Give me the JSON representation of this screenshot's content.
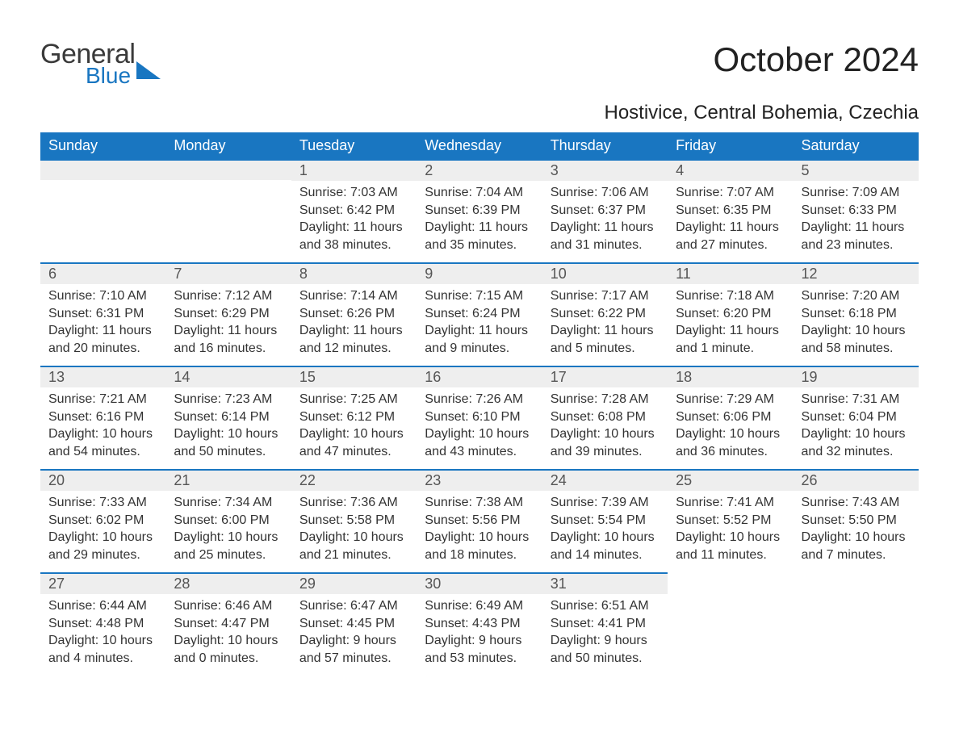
{
  "brand": {
    "line1": "General",
    "line2": "Blue",
    "accent": "#1976c1",
    "text_color": "#3a3a3a"
  },
  "title": "October 2024",
  "location": "Hostivice, Central Bohemia, Czechia",
  "colors": {
    "header_bg": "#1976c1",
    "header_fg": "#ffffff",
    "daynum_bg": "#eeeeee",
    "daynum_fg": "#555555",
    "body_fg": "#333333",
    "rule": "#1976c1",
    "page_bg": "#ffffff"
  },
  "typography": {
    "title_fontsize_pt": 32,
    "location_fontsize_pt": 18,
    "header_fontsize_pt": 14,
    "daynum_fontsize_pt": 14,
    "body_fontsize_pt": 12,
    "family": "Arial"
  },
  "layout": {
    "columns": 7,
    "rows": 5,
    "first_weekday": "Sunday",
    "leading_blanks": 2,
    "trailing_blanks": 2
  },
  "weekdays": [
    "Sunday",
    "Monday",
    "Tuesday",
    "Wednesday",
    "Thursday",
    "Friday",
    "Saturday"
  ],
  "days": [
    {
      "n": 1,
      "sunrise": "7:03 AM",
      "sunset": "6:42 PM",
      "daylight": "11 hours and 38 minutes."
    },
    {
      "n": 2,
      "sunrise": "7:04 AM",
      "sunset": "6:39 PM",
      "daylight": "11 hours and 35 minutes."
    },
    {
      "n": 3,
      "sunrise": "7:06 AM",
      "sunset": "6:37 PM",
      "daylight": "11 hours and 31 minutes."
    },
    {
      "n": 4,
      "sunrise": "7:07 AM",
      "sunset": "6:35 PM",
      "daylight": "11 hours and 27 minutes."
    },
    {
      "n": 5,
      "sunrise": "7:09 AM",
      "sunset": "6:33 PM",
      "daylight": "11 hours and 23 minutes."
    },
    {
      "n": 6,
      "sunrise": "7:10 AM",
      "sunset": "6:31 PM",
      "daylight": "11 hours and 20 minutes."
    },
    {
      "n": 7,
      "sunrise": "7:12 AM",
      "sunset": "6:29 PM",
      "daylight": "11 hours and 16 minutes."
    },
    {
      "n": 8,
      "sunrise": "7:14 AM",
      "sunset": "6:26 PM",
      "daylight": "11 hours and 12 minutes."
    },
    {
      "n": 9,
      "sunrise": "7:15 AM",
      "sunset": "6:24 PM",
      "daylight": "11 hours and 9 minutes."
    },
    {
      "n": 10,
      "sunrise": "7:17 AM",
      "sunset": "6:22 PM",
      "daylight": "11 hours and 5 minutes."
    },
    {
      "n": 11,
      "sunrise": "7:18 AM",
      "sunset": "6:20 PM",
      "daylight": "11 hours and 1 minute."
    },
    {
      "n": 12,
      "sunrise": "7:20 AM",
      "sunset": "6:18 PM",
      "daylight": "10 hours and 58 minutes."
    },
    {
      "n": 13,
      "sunrise": "7:21 AM",
      "sunset": "6:16 PM",
      "daylight": "10 hours and 54 minutes."
    },
    {
      "n": 14,
      "sunrise": "7:23 AM",
      "sunset": "6:14 PM",
      "daylight": "10 hours and 50 minutes."
    },
    {
      "n": 15,
      "sunrise": "7:25 AM",
      "sunset": "6:12 PM",
      "daylight": "10 hours and 47 minutes."
    },
    {
      "n": 16,
      "sunrise": "7:26 AM",
      "sunset": "6:10 PM",
      "daylight": "10 hours and 43 minutes."
    },
    {
      "n": 17,
      "sunrise": "7:28 AM",
      "sunset": "6:08 PM",
      "daylight": "10 hours and 39 minutes."
    },
    {
      "n": 18,
      "sunrise": "7:29 AM",
      "sunset": "6:06 PM",
      "daylight": "10 hours and 36 minutes."
    },
    {
      "n": 19,
      "sunrise": "7:31 AM",
      "sunset": "6:04 PM",
      "daylight": "10 hours and 32 minutes."
    },
    {
      "n": 20,
      "sunrise": "7:33 AM",
      "sunset": "6:02 PM",
      "daylight": "10 hours and 29 minutes."
    },
    {
      "n": 21,
      "sunrise": "7:34 AM",
      "sunset": "6:00 PM",
      "daylight": "10 hours and 25 minutes."
    },
    {
      "n": 22,
      "sunrise": "7:36 AM",
      "sunset": "5:58 PM",
      "daylight": "10 hours and 21 minutes."
    },
    {
      "n": 23,
      "sunrise": "7:38 AM",
      "sunset": "5:56 PM",
      "daylight": "10 hours and 18 minutes."
    },
    {
      "n": 24,
      "sunrise": "7:39 AM",
      "sunset": "5:54 PM",
      "daylight": "10 hours and 14 minutes."
    },
    {
      "n": 25,
      "sunrise": "7:41 AM",
      "sunset": "5:52 PM",
      "daylight": "10 hours and 11 minutes."
    },
    {
      "n": 26,
      "sunrise": "7:43 AM",
      "sunset": "5:50 PM",
      "daylight": "10 hours and 7 minutes."
    },
    {
      "n": 27,
      "sunrise": "6:44 AM",
      "sunset": "4:48 PM",
      "daylight": "10 hours and 4 minutes."
    },
    {
      "n": 28,
      "sunrise": "6:46 AM",
      "sunset": "4:47 PM",
      "daylight": "10 hours and 0 minutes."
    },
    {
      "n": 29,
      "sunrise": "6:47 AM",
      "sunset": "4:45 PM",
      "daylight": "9 hours and 57 minutes."
    },
    {
      "n": 30,
      "sunrise": "6:49 AM",
      "sunset": "4:43 PM",
      "daylight": "9 hours and 53 minutes."
    },
    {
      "n": 31,
      "sunrise": "6:51 AM",
      "sunset": "4:41 PM",
      "daylight": "9 hours and 50 minutes."
    }
  ],
  "labels": {
    "sunrise": "Sunrise: ",
    "sunset": "Sunset: ",
    "daylight": "Daylight: "
  }
}
